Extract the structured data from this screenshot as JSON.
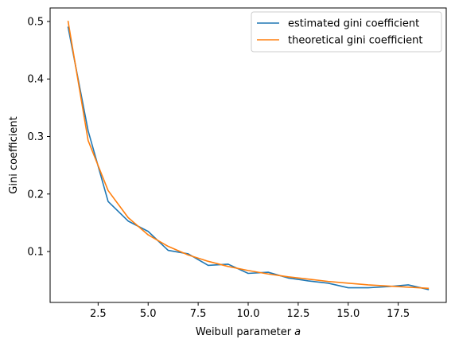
{
  "chart_data": {
    "type": "line",
    "title": "",
    "xlabel_prefix": "Weibull parameter ",
    "xlabel_var": "a",
    "ylabel": "Gini coefficient",
    "xlim": [
      0.1,
      19.9
    ],
    "ylim": [
      0.0115,
      0.5235
    ],
    "xticks": [
      {
        "value": 2.5,
        "label": "2.5"
      },
      {
        "value": 5.0,
        "label": "5.0"
      },
      {
        "value": 7.5,
        "label": "7.5"
      },
      {
        "value": 10.0,
        "label": "10.0"
      },
      {
        "value": 12.5,
        "label": "12.5"
      },
      {
        "value": 15.0,
        "label": "15.0"
      },
      {
        "value": 17.5,
        "label": "17.5"
      }
    ],
    "yticks": [
      {
        "value": 0.1,
        "label": "0.1"
      },
      {
        "value": 0.2,
        "label": "0.2"
      },
      {
        "value": 0.3,
        "label": "0.3"
      },
      {
        "value": 0.4,
        "label": "0.4"
      },
      {
        "value": 0.5,
        "label": "0.5"
      }
    ],
    "legend_position": "top-right",
    "grid": false,
    "x": [
      1,
      2,
      3,
      4,
      5,
      6,
      7,
      8,
      9,
      10,
      11,
      12,
      13,
      14,
      15,
      16,
      17,
      18,
      19
    ],
    "series": [
      {
        "name": "estimated gini coefficient",
        "color": "#1f77b4",
        "values": [
          0.49,
          0.31,
          0.187,
          0.153,
          0.135,
          0.102,
          0.096,
          0.076,
          0.078,
          0.062,
          0.064,
          0.054,
          0.049,
          0.045,
          0.037,
          0.037,
          0.039,
          0.042,
          0.034
        ]
      },
      {
        "name": "theoretical gini coefficient",
        "color": "#ff7f0e",
        "values": [
          0.5,
          0.293,
          0.206,
          0.159,
          0.129,
          0.109,
          0.094,
          0.083,
          0.074,
          0.067,
          0.061,
          0.056,
          0.052,
          0.048,
          0.045,
          0.042,
          0.04,
          0.038,
          0.036
        ]
      }
    ]
  }
}
